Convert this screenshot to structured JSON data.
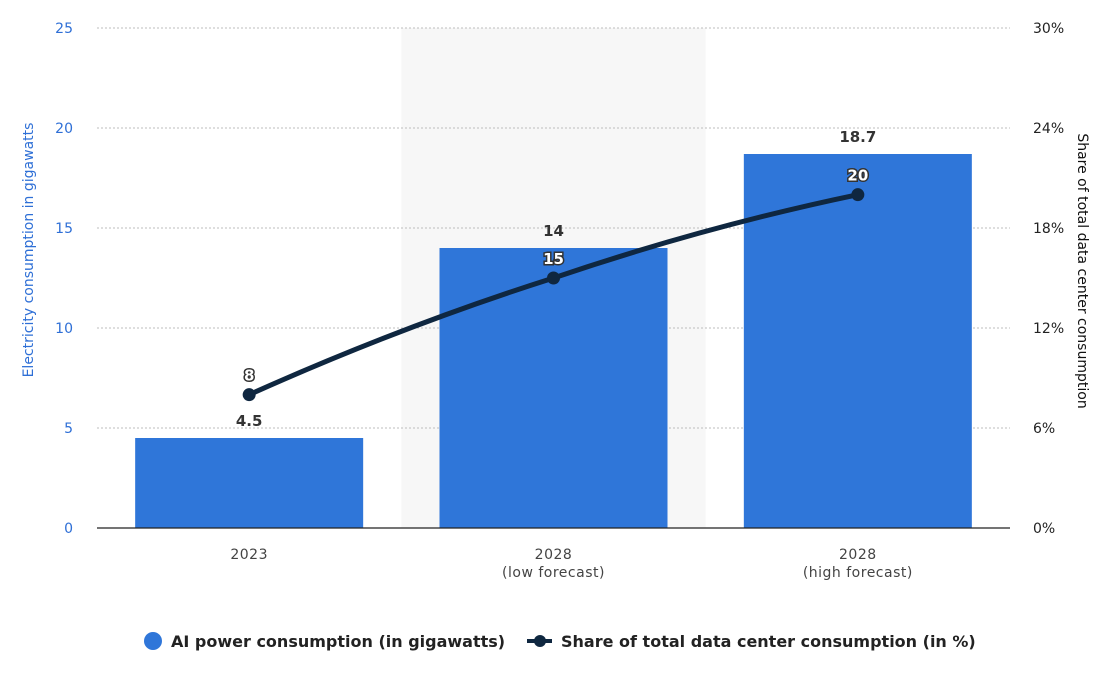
{
  "colors": {
    "bar": "#2f76d9",
    "line": "#0f2740",
    "highlight_band": "#f7f7f7",
    "grid": "#bdbdbd",
    "left_axis_text": "#2e6fd6"
  },
  "chart_data": {
    "type": "bar",
    "categories": [
      [
        "2023"
      ],
      [
        "2028",
        "(low forecast)"
      ],
      [
        "2028",
        "(high forecast)"
      ]
    ],
    "series": [
      {
        "name": "AI power consumption (in gigawatts)",
        "kind": "bar",
        "axis": "left",
        "values": [
          4.5,
          14,
          18.7
        ],
        "labels": [
          "4.5",
          "14",
          "18.7"
        ]
      },
      {
        "name": "Share of total data center consumption (in %)",
        "kind": "line",
        "axis": "right",
        "values": [
          8,
          15,
          20
        ],
        "labels": [
          "8",
          "15",
          "20"
        ]
      }
    ],
    "highlighted_category_index": 1,
    "left_axis": {
      "label": "Electricity consumption in gigawatts",
      "ylim": [
        0,
        25
      ],
      "ticks": [
        "0",
        "5",
        "10",
        "15",
        "20",
        "25"
      ]
    },
    "right_axis": {
      "label": "Share of total data center consumption",
      "ylim": [
        0,
        30
      ],
      "ticks": [
        "0%",
        "6%",
        "12%",
        "18%",
        "24%",
        "30%"
      ]
    },
    "grid": true,
    "legend_position": "bottom-center"
  }
}
